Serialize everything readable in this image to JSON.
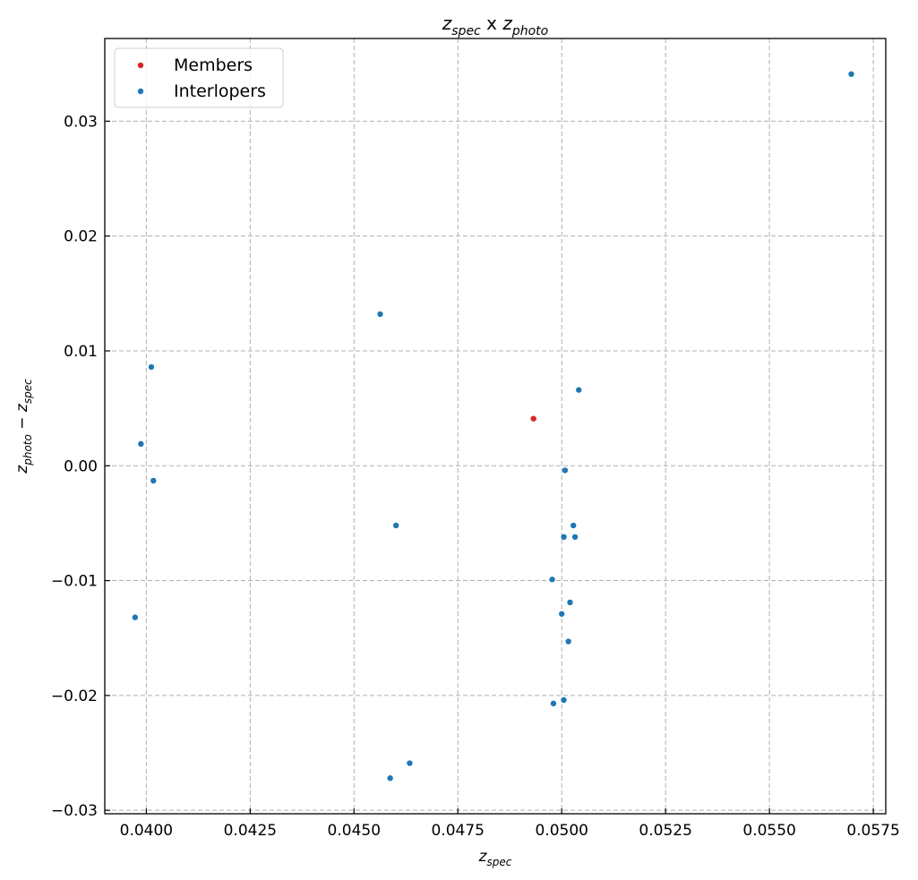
{
  "chart_data": {
    "type": "scatter",
    "title": {
      "base": "z",
      "sub1": "spec",
      "mid": " x ",
      "base2": "z",
      "sub2": "photo"
    },
    "xlabel": {
      "base": "z",
      "sub": "spec"
    },
    "ylabel": {
      "base1": "z",
      "sub1": "photo",
      "op": " − ",
      "base2": "z",
      "sub2": "spec"
    },
    "xlim": [
      0.039,
      0.0578
    ],
    "ylim": [
      -0.0303,
      0.0372
    ],
    "xticks": [
      0.04,
      0.0425,
      0.045,
      0.0475,
      0.05,
      0.0525,
      0.055,
      0.0575
    ],
    "xtick_labels": [
      "0.0400",
      "0.0425",
      "0.0450",
      "0.0475",
      "0.0500",
      "0.0525",
      "0.0550",
      "0.0575"
    ],
    "yticks": [
      -0.03,
      -0.02,
      -0.01,
      0.0,
      0.01,
      0.02,
      0.03
    ],
    "ytick_labels": [
      "−0.03",
      "−0.02",
      "−0.01",
      "0.00",
      "0.01",
      "0.02",
      "0.03"
    ],
    "grid": true,
    "legend_position": "top-left",
    "series": [
      {
        "name": "Members",
        "color": "#d62728",
        "points": [
          {
            "x": 0.04932,
            "y": 0.0041
          }
        ]
      },
      {
        "name": "Interlopers",
        "color": "#1f77b4",
        "points": [
          {
            "x": 0.05697,
            "y": 0.0341
          },
          {
            "x": 0.04563,
            "y": 0.0132
          },
          {
            "x": 0.04012,
            "y": 0.0086
          },
          {
            "x": 0.03987,
            "y": 0.0019
          },
          {
            "x": 0.04017,
            "y": -0.0013
          },
          {
            "x": 0.03973,
            "y": -0.0132
          },
          {
            "x": 0.05041,
            "y": 0.0066
          },
          {
            "x": 0.05008,
            "y": -0.0004
          },
          {
            "x": 0.04601,
            "y": -0.0052
          },
          {
            "x": 0.05028,
            "y": -0.0052
          },
          {
            "x": 0.05005,
            "y": -0.0062
          },
          {
            "x": 0.05032,
            "y": -0.0062
          },
          {
            "x": 0.04977,
            "y": -0.0099
          },
          {
            "x": 0.0502,
            "y": -0.0119
          },
          {
            "x": 0.05,
            "y": -0.0129
          },
          {
            "x": 0.05016,
            "y": -0.0153
          },
          {
            "x": 0.0498,
            "y": -0.0207
          },
          {
            "x": 0.05005,
            "y": -0.0204
          },
          {
            "x": 0.04587,
            "y": -0.0272
          },
          {
            "x": 0.04634,
            "y": -0.0259
          }
        ]
      }
    ]
  }
}
